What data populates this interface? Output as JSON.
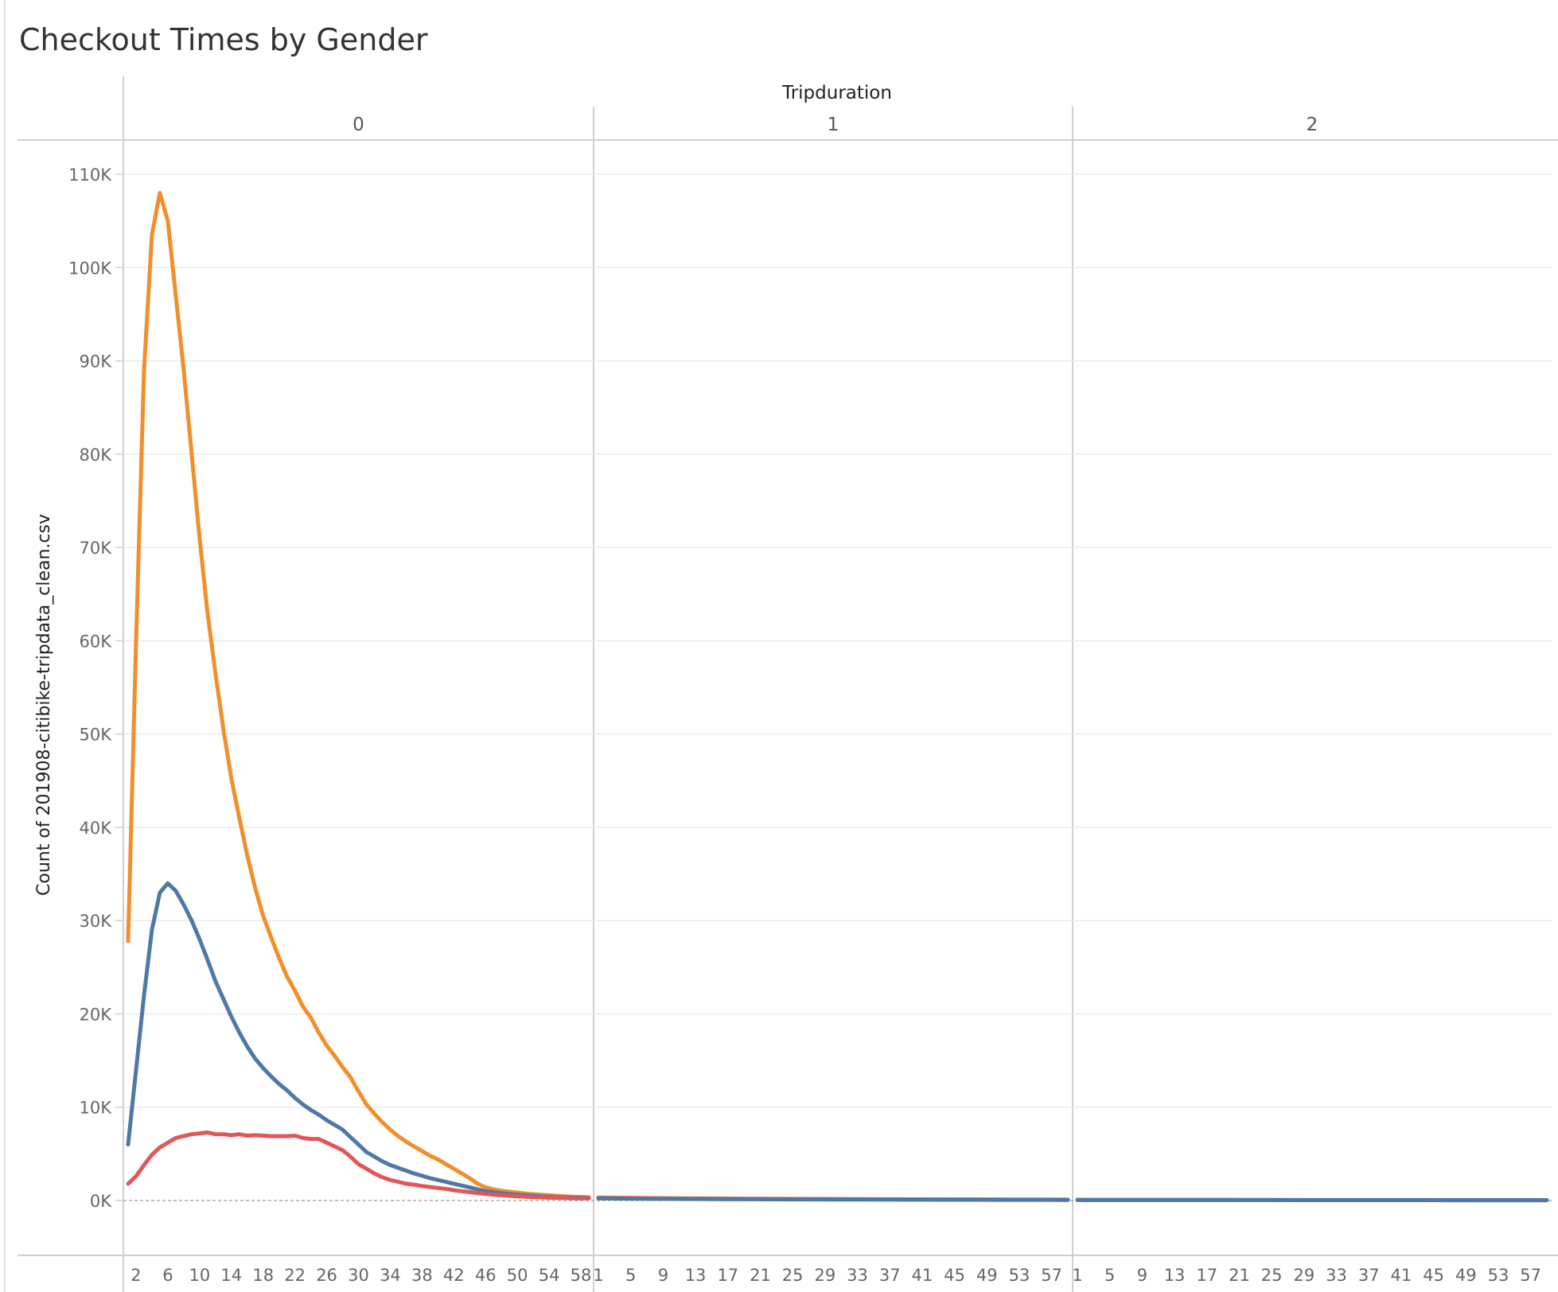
{
  "chart_data": {
    "type": "line",
    "title": "Checkout Times by Gender",
    "column_header": "Tripduration",
    "ylabel": "Count of 201908-citibike-tripdata_clean.csv",
    "ylim": [
      0,
      110000
    ],
    "y_ticks": [
      0,
      10000,
      20000,
      30000,
      40000,
      50000,
      60000,
      70000,
      80000,
      90000,
      100000,
      110000
    ],
    "y_tick_labels": [
      "0K",
      "10K",
      "20K",
      "30K",
      "40K",
      "50K",
      "60K",
      "70K",
      "80K",
      "90K",
      "100K",
      "110K"
    ],
    "grid": true,
    "legend": "none",
    "colors": {
      "orange": "#f28e2b",
      "blue": "#4e79a7",
      "red": "#e15759"
    },
    "panes": [
      {
        "label": "0",
        "x_range": [
          1,
          59
        ],
        "x_ticks": [
          2,
          6,
          10,
          14,
          18,
          22,
          26,
          30,
          34,
          38,
          42,
          46,
          50,
          54,
          58
        ],
        "series": [
          {
            "color": "#f28e2b",
            "x": [
              1,
              2,
              3,
              4,
              5,
              6,
              7,
              8,
              9,
              10,
              11,
              12,
              13,
              14,
              15,
              16,
              17,
              18,
              19,
              20,
              21,
              22,
              23,
              24,
              25,
              26,
              27,
              28,
              29,
              30,
              31,
              32,
              33,
              34,
              35,
              36,
              37,
              38,
              39,
              40,
              41,
              42,
              43,
              44,
              45,
              46,
              47,
              48,
              49,
              50,
              51,
              52,
              53,
              54,
              55,
              56,
              57,
              58,
              59
            ],
            "values": [
              27800,
              60000,
              89000,
              103500,
              108000,
              105000,
              97000,
              89000,
              80000,
              71000,
              63000,
              56500,
              50500,
              45200,
              41000,
              37000,
              33500,
              30500,
              28200,
              26000,
              24000,
              22500,
              20800,
              19600,
              18000,
              16600,
              15500,
              14300,
              13200,
              11700,
              10300,
              9300,
              8400,
              7600,
              6900,
              6300,
              5800,
              5300,
              4800,
              4400,
              3900,
              3400,
              2900,
              2400,
              1800,
              1400,
              1200,
              1050,
              950,
              850,
              750,
              680,
              620,
              560,
              500,
              450,
              400,
              380,
              350
            ]
          },
          {
            "color": "#4e79a7",
            "x": [
              1,
              2,
              3,
              4,
              5,
              6,
              7,
              8,
              9,
              10,
              11,
              12,
              13,
              14,
              15,
              16,
              17,
              18,
              19,
              20,
              21,
              22,
              23,
              24,
              25,
              26,
              27,
              28,
              29,
              30,
              31,
              32,
              33,
              34,
              35,
              36,
              37,
              38,
              39,
              40,
              41,
              42,
              43,
              44,
              45,
              46,
              47,
              48,
              49,
              50,
              51,
              52,
              53,
              54,
              55,
              56,
              57,
              58,
              59
            ],
            "values": [
              6000,
              14000,
              22000,
              29000,
              33000,
              34000,
              33200,
              31700,
              30000,
              28000,
              25800,
              23500,
              21600,
              19700,
              18000,
              16500,
              15200,
              14200,
              13300,
              12500,
              11800,
              11000,
              10300,
              9700,
              9200,
              8600,
              8100,
              7600,
              6800,
              6000,
              5200,
              4700,
              4200,
              3800,
              3500,
              3200,
              2900,
              2650,
              2400,
              2200,
              2000,
              1800,
              1600,
              1400,
              1200,
              1000,
              900,
              800,
              700,
              620,
              560,
              500,
              450,
              400,
              370,
              340,
              310,
              290,
              270
            ]
          },
          {
            "color": "#e15759",
            "x": [
              1,
              2,
              3,
              4,
              5,
              6,
              7,
              8,
              9,
              10,
              11,
              12,
              13,
              14,
              15,
              16,
              17,
              18,
              19,
              20,
              21,
              22,
              23,
              24,
              25,
              26,
              27,
              28,
              29,
              30,
              31,
              32,
              33,
              34,
              35,
              36,
              37,
              38,
              39,
              40,
              41,
              42,
              43,
              44,
              45,
              46,
              47,
              48,
              49,
              50,
              51,
              52,
              53,
              54,
              55,
              56,
              57,
              58,
              59
            ],
            "values": [
              1800,
              2600,
              3800,
              4900,
              5700,
              6200,
              6700,
              6900,
              7100,
              7200,
              7300,
              7100,
              7100,
              7000,
              7100,
              6950,
              7000,
              6950,
              6900,
              6900,
              6900,
              6950,
              6700,
              6600,
              6600,
              6200,
              5800,
              5400,
              4700,
              3900,
              3400,
              2900,
              2500,
              2200,
              2000,
              1800,
              1700,
              1550,
              1450,
              1350,
              1250,
              1100,
              1000,
              900,
              800,
              700,
              620,
              560,
              500,
              450,
              400,
              370,
              340,
              310,
              290,
              270,
              250,
              240,
              230
            ]
          }
        ]
      },
      {
        "label": "1",
        "x_range": [
          1,
          59
        ],
        "x_ticks": [
          1,
          5,
          9,
          13,
          17,
          21,
          25,
          29,
          33,
          37,
          41,
          45,
          49,
          53,
          57
        ],
        "series": [
          {
            "color": "#f28e2b",
            "x": [
              1,
              5,
              10,
              15,
              20,
              25,
              30,
              35,
              40,
              45,
              50,
              55,
              59
            ],
            "values": [
              330,
              290,
              250,
              220,
              200,
              180,
              160,
              140,
              130,
              120,
              110,
              100,
              90
            ]
          },
          {
            "color": "#e15759",
            "x": [
              1,
              5,
              10,
              15,
              20,
              25,
              30,
              35,
              40,
              45,
              50,
              55,
              59
            ],
            "values": [
              260,
              230,
              200,
              180,
              165,
              150,
              135,
              120,
              110,
              100,
              95,
              85,
              80
            ]
          },
          {
            "color": "#4e79a7",
            "x": [
              1,
              5,
              10,
              15,
              20,
              25,
              30,
              35,
              40,
              45,
              50,
              55,
              59
            ],
            "values": [
              240,
              200,
              170,
              150,
              135,
              120,
              110,
              100,
              90,
              85,
              80,
              75,
              70
            ]
          }
        ]
      },
      {
        "label": "2",
        "x_range": [
          1,
          59
        ],
        "x_ticks": [
          1,
          5,
          9,
          13,
          17,
          21,
          25,
          29,
          33,
          37,
          41,
          45,
          49,
          53,
          57
        ],
        "series": [
          {
            "color": "#f28e2b",
            "x": [
              1,
              10,
              20,
              30,
              40,
              50,
              59
            ],
            "values": [
              70,
              65,
              60,
              55,
              50,
              45,
              40
            ]
          },
          {
            "color": "#e15759",
            "x": [
              1,
              10,
              20,
              30,
              40,
              50,
              59
            ],
            "values": [
              60,
              55,
              50,
              45,
              40,
              38,
              35
            ]
          },
          {
            "color": "#4e79a7",
            "x": [
              1,
              10,
              20,
              30,
              40,
              50,
              59
            ],
            "values": [
              60,
              55,
              50,
              45,
              42,
              38,
              35
            ]
          }
        ]
      }
    ]
  }
}
